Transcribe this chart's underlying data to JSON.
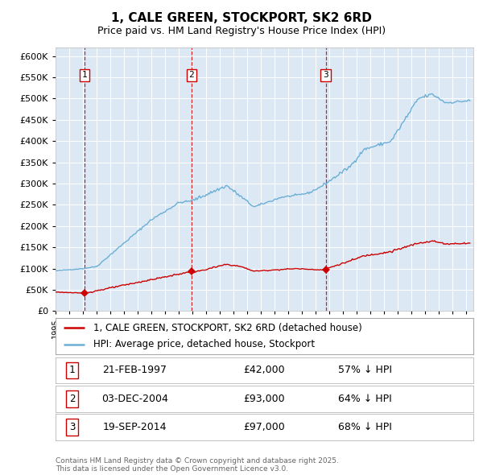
{
  "title": "1, CALE GREEN, STOCKPORT, SK2 6RD",
  "subtitle": "Price paid vs. HM Land Registry's House Price Index (HPI)",
  "background_color": "#dce9f5",
  "legend_line1": "1, CALE GREEN, STOCKPORT, SK2 6RD (detached house)",
  "legend_line2": "HPI: Average price, detached house, Stockport",
  "footer": "Contains HM Land Registry data © Crown copyright and database right 2025.\nThis data is licensed under the Open Government Licence v3.0.",
  "sale_prices": [
    42000,
    93000,
    97000
  ],
  "sale_decimal": [
    1997.12,
    2004.92,
    2014.72
  ],
  "sale_labels": [
    "1",
    "2",
    "3"
  ],
  "sale_label_info": [
    [
      "1",
      "21-FEB-1997",
      "£42,000",
      "57% ↓ HPI"
    ],
    [
      "2",
      "03-DEC-2004",
      "£93,000",
      "64% ↓ HPI"
    ],
    [
      "3",
      "19-SEP-2014",
      "£97,000",
      "68% ↓ HPI"
    ]
  ],
  "hpi_color": "#6baed6",
  "price_color": "#cc0000",
  "ylim": [
    0,
    620000
  ],
  "yticks": [
    0,
    50000,
    100000,
    150000,
    200000,
    250000,
    300000,
    350000,
    400000,
    450000,
    500000,
    550000,
    600000
  ],
  "xlim": [
    1995,
    2025.5
  ]
}
